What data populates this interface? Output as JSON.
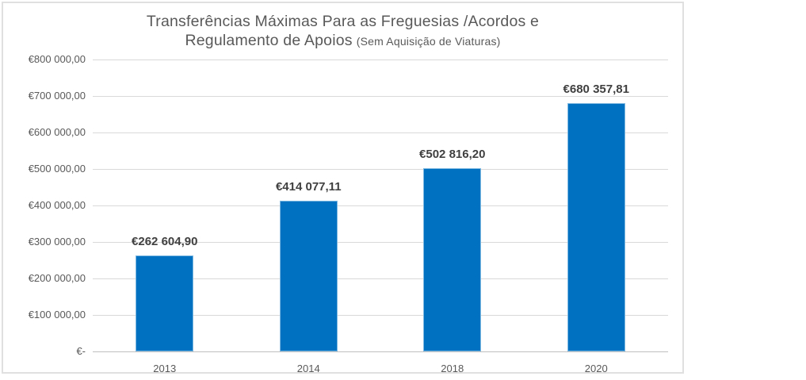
{
  "chart_data": {
    "type": "bar",
    "title_line1": "Transferências Máximas Para as Freguesias /Acordos e",
    "title_line2": "Regulamento de Apoios",
    "title_note": "(Sem Aquisição de Viaturas)",
    "categories": [
      "2013",
      "2014",
      "2018",
      "2020"
    ],
    "values": [
      262604.9,
      414077.11,
      502816.2,
      680357.81
    ],
    "data_labels": [
      "€262 604,90",
      "€414 077,11",
      "€502 816,20",
      "€680 357,81"
    ],
    "y_tick_labels": [
      "€-",
      "€100 000,00",
      "€200 000,00",
      "€300 000,00",
      "€400 000,00",
      "€500 000,00",
      "€600 000,00",
      "€700 000,00",
      "€800 000,00"
    ],
    "ylim": [
      0,
      800000
    ],
    "y_tick_step": 100000,
    "grid": true,
    "legend": "none",
    "xlabel": "",
    "ylabel": "",
    "colors": {
      "bar_fill": "#0070c0",
      "bar_border": "#7fb9e2",
      "gridline": "#d9d9d9",
      "baseline": "#bfbfbf",
      "axis_text": "#595959",
      "title_text": "#595959",
      "data_label_text": "#404040",
      "chart_border": "#e0e0e0",
      "background": "#ffffff"
    }
  }
}
